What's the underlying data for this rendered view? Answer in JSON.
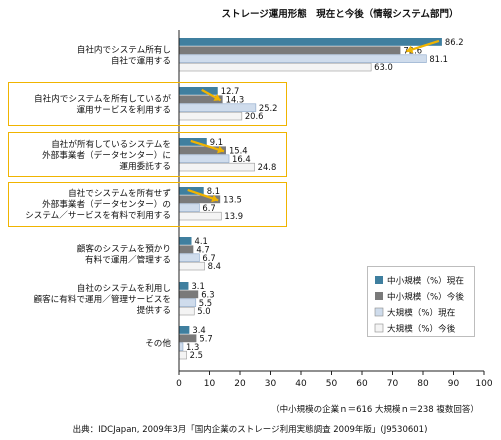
{
  "chart_data": {
    "type": "bar",
    "orientation": "horizontal",
    "title": "ストレージ運用形態　現在と今後（情報システム部門）",
    "categories": [
      [
        "自社内でシステム所有し",
        "自社で運用する"
      ],
      [
        "自社内でシステムを所有しているが",
        "運用サービスを利用する"
      ],
      [
        "自社が所有しているシステムを",
        "外部事業者（データセンター）に",
        "運用委託する"
      ],
      [
        "自社でシステムを所有せず",
        "外部事業者（データセンター）の",
        "システム／サービスを有料で利用する"
      ],
      [
        "顧客のシステムを預かり",
        "有料で運用／管理する"
      ],
      [
        "自社のシステムを利用し",
        "顧客に有料で運用／管理サービスを",
        "提供する"
      ],
      [
        "その他"
      ]
    ],
    "highlighted_categories": [
      1,
      2,
      3
    ],
    "series": [
      {
        "name": "中小規模（%）現在",
        "color": "#3f7f9f",
        "values": [
          86.2,
          12.7,
          9.1,
          8.1,
          4.1,
          3.1,
          3.4
        ]
      },
      {
        "name": "中小規模（%）今後",
        "color": "#7a7a7a",
        "values": [
          72.6,
          14.3,
          15.4,
          13.5,
          4.7,
          6.3,
          5.7
        ]
      },
      {
        "name": "大規模（%）現在",
        "color": "#cfdcec",
        "values": [
          81.1,
          25.2,
          16.4,
          6.7,
          6.7,
          5.5,
          1.3
        ]
      },
      {
        "name": "大規模（%）今後",
        "color": "#f4f4f4",
        "values": [
          63.0,
          20.6,
          24.8,
          13.9,
          8.4,
          5.0,
          2.5
        ]
      }
    ],
    "xlim": [
      0,
      100
    ],
    "xticks": [
      0,
      10,
      20,
      30,
      40,
      50,
      60,
      70,
      80,
      90,
      100
    ],
    "grid": false,
    "legend_position": "bottom-right",
    "arrow_color": "#f0b400"
  },
  "footnote_sample": "（中小規模の企業ｎ＝616 大規模ｎ＝238 複数回答）",
  "source": "出典：IDCJapan, 2009年3月「国内企業のストレージ利用実態調査 2009年版」(J9530601)"
}
